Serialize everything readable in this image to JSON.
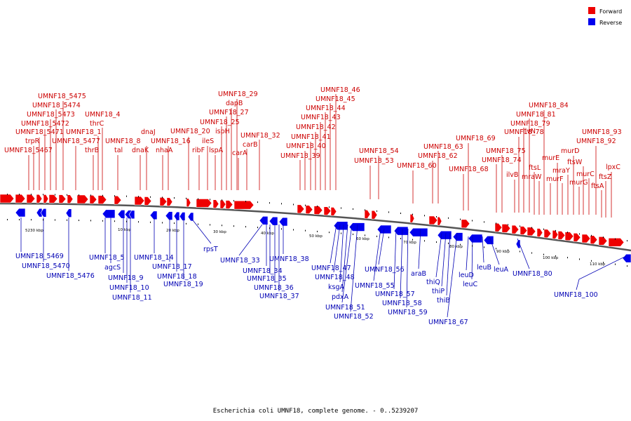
{
  "caption": "Escherichia coli UMNF18, complete genome. - 0..5239207",
  "legend": [
    {
      "label": "Forward",
      "color": "#ee0000"
    },
    {
      "label": "Reverse",
      "color": "#0000ee"
    }
  ],
  "ticks": [
    "5230 kbp",
    "10 kbp",
    "20 kbp",
    "30 kbp",
    "40 kbp",
    "50 kbp",
    "60 kbp",
    "70 kbp",
    "80 kbp",
    "90 kbp",
    "100 kbp",
    "110 kbp"
  ],
  "forward_labels": [
    "UMNF18_5475",
    "UMNF18_5474",
    "UMNF18_5473",
    "UMNF18_5472",
    "UMNF18_5471",
    "trpR",
    "UMNF18_5467",
    "UMNF18_4",
    "thrC",
    "UMNF18_1",
    "UMNF18_5477",
    "thrB",
    "UMNF18_8",
    "tal",
    "dnaJ",
    "dnaK",
    "UMNF18_16",
    "nhaA",
    "UMNF18_29",
    "dapB",
    "UMNF18_27",
    "UMNF18_25",
    "ispH",
    "UMNF18_20",
    "ileS",
    "ribF",
    "lspA",
    "carB",
    "carA",
    "UMNF18_32",
    "UMNF18_46",
    "UMNF18_45",
    "UMNF18_44",
    "UMNF18_43",
    "UMNF18_42",
    "UMNF18_41",
    "UMNF18_40",
    "UMNF18_39",
    "UMNF18_54",
    "UMNF18_53",
    "UMNF18_63",
    "UMNF18_62",
    "UMNF18_60",
    "UMNF18_69",
    "UMNF18_68",
    "UMNF18_84",
    "UMNF18_81",
    "UMNF18_79",
    "ilvN",
    "UMNF18_78",
    "UMNF18_75",
    "UMNF18_74",
    "ftsL",
    "ilvB",
    "mraW",
    "murD",
    "murE",
    "ftsW",
    "mraY",
    "murF",
    "murC",
    "murG",
    "UMNF18_93",
    "UMNF18_92",
    "lpxC",
    "ftsZ",
    "ftsA"
  ],
  "reverse_labels": [
    "UMNF18_5469",
    "UMNF18_5470",
    "UMNF18_5476",
    "UMNF18_5",
    "agcS",
    "UMNF18_9",
    "UMNF18_10",
    "UMNF18_11",
    "UMNF18_14",
    "UMNF18_17",
    "UMNF18_18",
    "UMNF18_19",
    "rpsT",
    "UMNF18_33",
    "UMNF18_34",
    "UMNF18_35",
    "UMNF18_36",
    "UMNF18_37",
    "UMNF18_38",
    "UMNF18_47",
    "UMNF18_48",
    "ksgA",
    "pdxA",
    "UMNF18_51",
    "UMNF18_52",
    "UMNF18_56",
    "UMNF18_55",
    "UMNF18_57",
    "UMNF18_58",
    "UMNF18_59",
    "araB",
    "thiQ",
    "thiP",
    "thiB",
    "UMNF18_67",
    "leuD",
    "leuC",
    "leuB",
    "leuA",
    "UMNF18_80",
    "UMNF18_100"
  ]
}
